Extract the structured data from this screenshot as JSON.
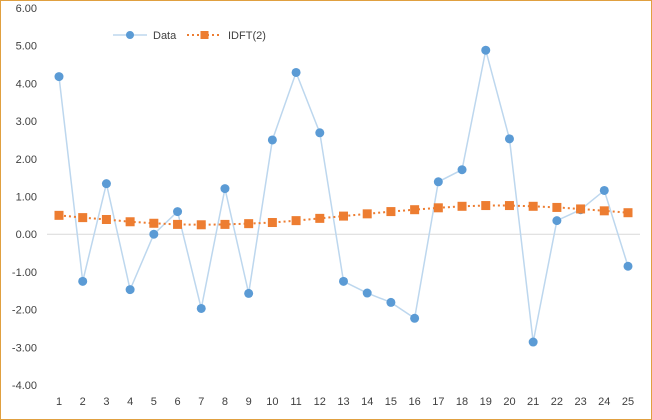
{
  "chart_data": {
    "type": "line",
    "title": "",
    "xlabel": "",
    "ylabel": "",
    "categories": [
      "1",
      "2",
      "3",
      "4",
      "5",
      "6",
      "7",
      "8",
      "9",
      "10",
      "11",
      "12",
      "13",
      "14",
      "15",
      "16",
      "17",
      "18",
      "19",
      "20",
      "21",
      "22",
      "23",
      "24",
      "25"
    ],
    "ylim": [
      -4,
      6
    ],
    "yticks": [
      "-4.00",
      "-3.00",
      "-2.00",
      "-1.00",
      "0.00",
      "1.00",
      "2.00",
      "3.00",
      "4.00",
      "5.00",
      "6.00"
    ],
    "grid": false,
    "legend": "top-left",
    "series": [
      {
        "name": "Data",
        "marker": "circle",
        "line": "solid",
        "color": "#5b9bd5",
        "line_color": "#bdd7ee",
        "values": [
          4.18,
          -1.25,
          1.34,
          -1.47,
          0.0,
          0.6,
          -1.97,
          1.21,
          -1.57,
          2.5,
          4.29,
          2.69,
          -1.25,
          -1.56,
          -1.81,
          -2.23,
          1.39,
          1.71,
          4.88,
          2.53,
          -2.86,
          0.36,
          0.65,
          1.16,
          -0.85
        ]
      },
      {
        "name": "IDFT(2)",
        "marker": "square",
        "line": "dotted",
        "color": "#ed7d31",
        "line_color": "#ed7d31",
        "values": [
          0.5,
          0.44,
          0.39,
          0.33,
          0.29,
          0.26,
          0.25,
          0.26,
          0.28,
          0.31,
          0.36,
          0.42,
          0.48,
          0.54,
          0.6,
          0.65,
          0.7,
          0.74,
          0.76,
          0.76,
          0.74,
          0.71,
          0.67,
          0.62,
          0.57
        ]
      }
    ]
  }
}
